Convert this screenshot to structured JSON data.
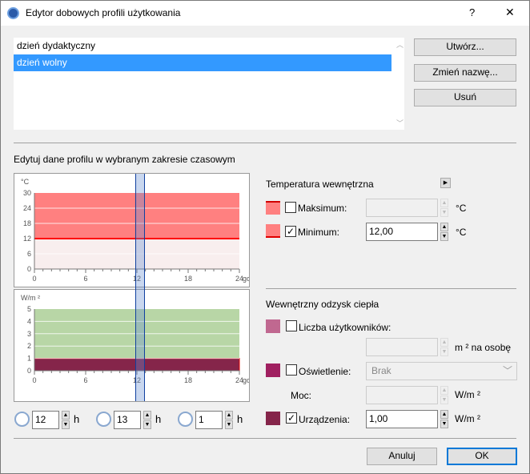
{
  "window": {
    "title": "Edytor dobowych profili użytkowania",
    "help": "?",
    "close": "✕"
  },
  "profiles": [
    {
      "label": "dzień dydaktyczny",
      "selected": false
    },
    {
      "label": "dzień wolny",
      "selected": true
    }
  ],
  "buttons": {
    "create": "Utwórz...",
    "rename": "Zmień nazwę...",
    "delete": "Usuń",
    "cancel": "Anuluj",
    "ok": "OK"
  },
  "section_label": "Edytuj dane profilu w wybranym zakresie czasowym",
  "chart_data": [
    {
      "type": "area",
      "ylabel": "°C",
      "xlabel": "god",
      "x_ticks": [
        "0",
        "6",
        "12",
        "18",
        "24"
      ],
      "y_ticks": [
        "0",
        "6",
        "12",
        "18",
        "24",
        "30"
      ],
      "ylim": [
        0,
        30
      ],
      "xlim": [
        0,
        24
      ],
      "series": [
        {
          "kind": "band",
          "from": 12,
          "to": 30,
          "color": "#ff8080"
        },
        {
          "kind": "line",
          "value": 12,
          "color": "#ff0000"
        }
      ],
      "selection": [
        12,
        13
      ]
    },
    {
      "type": "area",
      "ylabel": "W/m ²",
      "xlabel": "god",
      "x_ticks": [
        "0",
        "6",
        "12",
        "18",
        "24"
      ],
      "y_ticks": [
        "0",
        "1",
        "2",
        "3",
        "4",
        "5"
      ],
      "ylim": [
        0,
        5
      ],
      "xlim": [
        0,
        24
      ],
      "series": [
        {
          "kind": "band",
          "from": 0,
          "to": 5,
          "color": "#b8d6a6"
        },
        {
          "kind": "band",
          "from": 0,
          "to": 1,
          "color": "#85254a"
        }
      ],
      "selection": [
        12,
        13
      ]
    }
  ],
  "time": {
    "start": "12",
    "end": "13",
    "duration": "1",
    "unit": "h"
  },
  "temperature": {
    "header": "Temperatura wewnętrzna",
    "max": {
      "label": "Maksimum:",
      "checked": false,
      "value": "",
      "unit": "°C",
      "color": "#ff8080"
    },
    "min": {
      "label": "Minimum:",
      "checked": true,
      "value": "12,00",
      "unit": "°C",
      "color": "#ff8080"
    }
  },
  "heat": {
    "header": "Wewnętrzny odzysk ciepła",
    "users": {
      "label": "Liczba użytkowników:",
      "checked": false,
      "value": "",
      "unit": "m ² na osobę",
      "color": "#c06890"
    },
    "lighting": {
      "label": "Oświetlenie:",
      "checked": false,
      "select": "Brak",
      "color": "#a02060"
    },
    "power": {
      "label": "Moc:",
      "value": "",
      "unit": "W/m ²"
    },
    "devices": {
      "label": "Urządzenia:",
      "checked": true,
      "value": "1,00",
      "unit": "W/m ²",
      "color": "#85254a"
    }
  }
}
